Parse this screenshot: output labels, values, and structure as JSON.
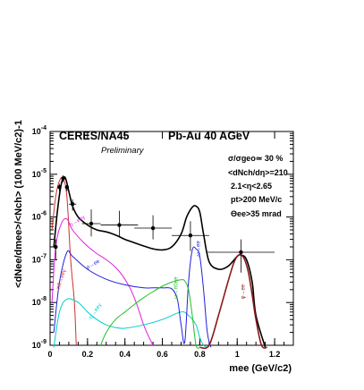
{
  "chart_data": {
    "type": "line",
    "title": "CERES/NA45",
    "system": "Pb-Au 40 AGeV",
    "preliminary": "Preliminary",
    "cuts": [
      "σ/σgeo≃ 30 %",
      "<dNch/dη>=210",
      "2.1<η<2.65",
      "pt>200 MeV/c",
      "Θee>35 mrad"
    ],
    "xlabel": "mee (GeV/c2)",
    "ylabel": "<dNee/dmee>/<Nch> (100 MeV/c2)-1",
    "xlim": [
      0,
      1.3
    ],
    "ylim": [
      1e-09,
      0.0001
    ],
    "yscale": "log",
    "xticks": [
      "0",
      "0.2",
      "0.4",
      "0.6",
      "0.8",
      "1",
      "1.2"
    ],
    "yticks": [
      "10-9",
      "10-8",
      "10-7",
      "10-6",
      "10-5",
      "10-4"
    ],
    "data_points": {
      "x": [
        0.03,
        0.05,
        0.07,
        0.09,
        0.12,
        0.22,
        0.37,
        0.55,
        0.75,
        1.02
      ],
      "y": [
        2e-07,
        5e-06,
        8e-06,
        5e-06,
        2e-06,
        7e-07,
        6.5e-07,
        5.5e-07,
        3.7e-07,
        1.5e-07
      ],
      "xerr": [
        0.01,
        0.01,
        0.01,
        0.01,
        0.02,
        0.05,
        0.1,
        0.1,
        0.1,
        0.18
      ],
      "ylo": [
        1e-07,
        4e-06,
        6.5e-06,
        4e-06,
        1.4e-06,
        3.5e-07,
        3.5e-07,
        3e-07,
        1.6e-07,
        5e-08
      ],
      "yhi": [
        3e-07,
        6e-06,
        9.5e-06,
        6e-06,
        2.6e-06,
        1.5e-06,
        1.4e-06,
        1.1e-06,
        8e-07,
        3e-07
      ]
    },
    "series": [
      {
        "name": "total",
        "color": "#000000",
        "width": 1.6,
        "x": [
          0.02,
          0.04,
          0.06,
          0.08,
          0.1,
          0.12,
          0.15,
          0.2,
          0.25,
          0.3,
          0.35,
          0.4,
          0.45,
          0.5,
          0.55,
          0.6,
          0.65,
          0.7,
          0.73,
          0.76,
          0.78,
          0.8,
          0.82,
          0.85,
          0.9,
          0.95,
          1.0,
          1.02,
          1.05,
          1.08,
          1.1,
          1.15
        ],
        "y": [
          2e-07,
          1.5e-06,
          6e-06,
          8.5e-06,
          4e-06,
          1.8e-06,
          1e-06,
          6.5e-07,
          5e-07,
          4.5e-07,
          3.8e-07,
          3e-07,
          2.5e-07,
          2.1e-07,
          1.8e-07,
          1.7e-07,
          2e-07,
          4e-07,
          1e-06,
          1.7e-06,
          1.8e-06,
          1.3e-06,
          4e-07,
          9e-08,
          6e-08,
          7e-08,
          1.2e-07,
          1.3e-07,
          1e-07,
          3e-08,
          5e-09,
          3e-10
        ]
      },
      {
        "name": "π0→eeγ",
        "color": "#d03030",
        "width": 1,
        "x": [
          0.01,
          0.03,
          0.05,
          0.07,
          0.09,
          0.11,
          0.13,
          0.14
        ],
        "y": [
          5e-07,
          3e-06,
          7e-06,
          8e-06,
          3e-06,
          1e-07,
          1e-08,
          1e-09
        ]
      },
      {
        "name": "η→eeγ",
        "color": "#e020e0",
        "width": 1,
        "x": [
          0.01,
          0.03,
          0.06,
          0.09,
          0.12,
          0.18,
          0.24,
          0.3,
          0.36,
          0.42,
          0.46,
          0.5,
          0.53,
          0.55
        ],
        "y": [
          1e-08,
          2e-07,
          7e-07,
          9e-07,
          5e-07,
          2.5e-07,
          1.5e-07,
          1e-07,
          6e-08,
          2.5e-08,
          1e-08,
          3e-09,
          1.5e-09,
          1e-09
        ]
      },
      {
        "name": "η'→eeγ",
        "color": "#00cccc",
        "width": 1,
        "x": [
          0.02,
          0.05,
          0.09,
          0.15,
          0.2,
          0.25,
          0.3,
          0.35,
          0.4,
          0.5,
          0.6,
          0.7,
          0.74,
          0.78,
          0.8,
          0.82,
          0.84
        ],
        "y": [
          6e-10,
          6e-09,
          1.2e-08,
          1e-08,
          6e-09,
          4e-09,
          3e-09,
          2.6e-09,
          2.5e-09,
          3e-09,
          4e-09,
          6e-09,
          5e-09,
          3e-09,
          1.5e-09,
          1e-09,
          8e-10
        ]
      },
      {
        "name": "ρ→ee / ω→ee (blue)",
        "color": "#2020dd",
        "width": 1,
        "x": [
          0.02,
          0.05,
          0.09,
          0.12,
          0.2,
          0.3,
          0.4,
          0.5,
          0.55,
          0.6,
          0.65,
          0.68,
          0.7,
          0.72,
          0.74,
          0.76,
          0.78,
          0.8,
          0.82,
          0.84,
          0.86
        ],
        "y": [
          2e-09,
          3e-08,
          1.5e-07,
          1.2e-07,
          6e-08,
          3.5e-08,
          2.6e-08,
          2.2e-08,
          2.2e-08,
          2.2e-08,
          2.1e-08,
          1.2e-08,
          3e-09,
          1.2e-09,
          3e-08,
          1.7e-07,
          1.8e-07,
          1.2e-07,
          2e-08,
          2e-09,
          5e-10
        ]
      },
      {
        "name": "ω→π0ee",
        "color": "#20c020",
        "width": 1,
        "x": [
          0.27,
          0.3,
          0.35,
          0.4,
          0.45,
          0.5,
          0.55,
          0.6,
          0.65,
          0.7,
          0.72,
          0.74,
          0.76,
          0.78,
          0.8
        ],
        "y": [
          1e-09,
          2e-09,
          4e-09,
          6e-09,
          9e-09,
          1.3e-08,
          1.8e-08,
          2.4e-08,
          3e-08,
          3.4e-08,
          3.2e-08,
          2e-08,
          5e-09,
          1e-09,
          3e-10
        ]
      },
      {
        "name": "φ→ee",
        "color": "#8b1a1a",
        "width": 1.6,
        "x": [
          0.8,
          0.85,
          0.9,
          0.95,
          0.98,
          1.0,
          1.02,
          1.04,
          1.06,
          1.08,
          1.1,
          1.13,
          1.16
        ],
        "y": [
          3e-10,
          1e-09,
          5e-09,
          3e-08,
          8e-08,
          1.2e-07,
          1.3e-07,
          1e-07,
          5e-08,
          1.5e-08,
          4e-09,
          1e-09,
          4e-10
        ]
      }
    ],
    "curve_labels": [
      {
        "text": "η→eeγ",
        "color": "#e020e0",
        "x": 0.11,
        "y": 6e-07,
        "rot": -30
      },
      {
        "text": "ρ→ee",
        "color": "#2020dd",
        "x": 0.2,
        "y": 6e-08,
        "rot": -30
      },
      {
        "text": "π0→eeγ",
        "color": "#d03030",
        "x": 0.05,
        "y": 2e-08,
        "rot": -72
      },
      {
        "text": "η'→eeγ",
        "color": "#00cccc",
        "x": 0.22,
        "y": 4e-09,
        "rot": -55
      },
      {
        "text": "ω→π0ee",
        "color": "#20c020",
        "x": 0.68,
        "y": 1.2e-08,
        "rot": -90
      },
      {
        "text": "ω→ee",
        "color": "#2020dd",
        "x": 0.8,
        "y": 1.2e-07,
        "rot": -90
      },
      {
        "text": "φ→ee",
        "color": "#8b1a1a",
        "x": 1.04,
        "y": 1.2e-08,
        "rot": -90
      }
    ]
  }
}
